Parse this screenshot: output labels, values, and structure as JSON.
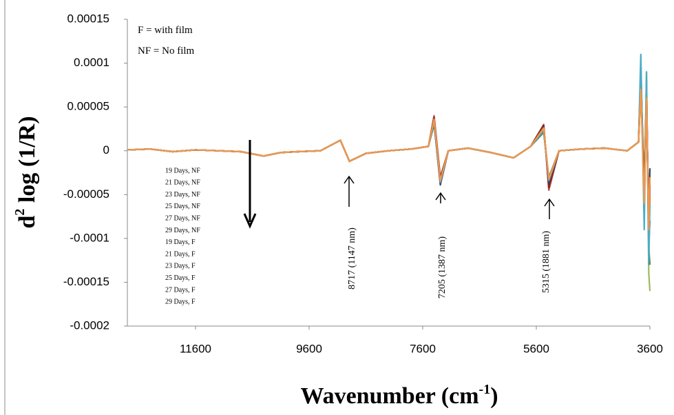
{
  "chart_data": {
    "type": "line",
    "y_label": {
      "base": "d",
      "sup": "2",
      "rest": " log (1/R)"
    },
    "x_label": {
      "base": "Wavenumber (cm",
      "sup": "-1",
      "rest": ")"
    },
    "notes": [
      "F = with film",
      "NF = No film"
    ],
    "annotations": [
      "8717 (1147 nm)",
      "7205 (1387 nm)",
      "5315 (1881 nm)"
    ],
    "xlim": [
      12800,
      3600
    ],
    "xticks": [
      11600,
      9600,
      7600,
      5600,
      3600
    ],
    "ylim": [
      -0.0002,
      0.00015
    ],
    "yticks": [
      0.00015,
      0.0001,
      5e-05,
      0,
      -5e-05,
      -0.0001,
      -0.00015,
      -0.0002
    ],
    "x": [
      12800,
      12400,
      12000,
      11600,
      11200,
      10800,
      10400,
      10100,
      9800,
      9400,
      9050,
      8890,
      8600,
      8200,
      7800,
      7500,
      7400,
      7290,
      7150,
      6800,
      6400,
      6000,
      5700,
      5470,
      5380,
      5200,
      4800,
      4400,
      4000,
      3800,
      3760,
      3700,
      3660,
      3620,
      3600
    ],
    "series": [
      {
        "name": "19 Days, NF",
        "color": "#4f81bd",
        "values": [
          1e-06,
          2e-06,
          -1e-06,
          1e-06,
          0,
          -1e-06,
          -6e-06,
          -2e-06,
          -1e-06,
          0,
          1.2e-05,
          -1.2e-05,
          -3e-06,
          0,
          2e-06,
          5e-06,
          3.2e-05,
          -3.8e-05,
          0,
          3e-06,
          -2e-06,
          -8e-06,
          5e-06,
          2.2e-05,
          -3.2e-05,
          0,
          2e-06,
          3e-06,
          0,
          1e-05,
          9e-05,
          -6e-05,
          7e-05,
          -0.0001,
          -4e-05
        ]
      },
      {
        "name": "21 Days, NF",
        "color": "#c0504d",
        "values": [
          1e-06,
          2e-06,
          -1e-06,
          1e-06,
          0,
          -1e-06,
          -6e-06,
          -2e-06,
          -1e-06,
          0,
          1.2e-05,
          -1.2e-05,
          -3e-06,
          0,
          2e-06,
          5e-06,
          4e-05,
          -3e-05,
          0,
          3e-06,
          -2e-06,
          -8e-06,
          5e-06,
          3e-05,
          -4.5e-05,
          0,
          2e-06,
          3e-06,
          0,
          1e-05,
          8e-05,
          -4e-05,
          6e-05,
          -9e-05,
          -2e-05
        ]
      },
      {
        "name": "23 Days, NF",
        "color": "#9bbb59",
        "values": [
          1e-06,
          2e-06,
          -1e-06,
          1e-06,
          0,
          -1e-06,
          -6e-06,
          -2e-06,
          -1e-06,
          0,
          1.2e-05,
          -1.2e-05,
          -3e-06,
          0,
          2e-06,
          5e-06,
          3e-05,
          -3.3e-05,
          0,
          3e-06,
          -2e-06,
          -8e-06,
          5e-06,
          2.4e-05,
          -3.4e-05,
          0,
          2e-06,
          3e-06,
          0,
          1e-05,
          7e-05,
          -5e-05,
          9e-05,
          -0.00014,
          -0.00016
        ]
      },
      {
        "name": "25 Days, NF",
        "color": "#8064a2",
        "values": [
          1e-06,
          2e-06,
          -1e-06,
          1e-06,
          0,
          -1e-06,
          -6e-06,
          -2e-06,
          -1e-06,
          0,
          1.2e-05,
          -1.2e-05,
          -3e-06,
          0,
          2e-06,
          5e-06,
          3.6e-05,
          -3.6e-05,
          0,
          3e-06,
          -2e-06,
          -8e-06,
          5e-06,
          2.6e-05,
          -3.6e-05,
          0,
          2e-06,
          3e-06,
          0,
          1e-05,
          0.0001,
          -7e-05,
          8e-05,
          -0.00011,
          -8e-05
        ]
      },
      {
        "name": "27 Days, NF",
        "color": "#4bacc6",
        "values": [
          1e-06,
          2e-06,
          -1e-06,
          1e-06,
          0,
          -1e-06,
          -6e-06,
          -2e-06,
          -1e-06,
          0,
          1.2e-05,
          -1.2e-05,
          -3e-06,
          0,
          2e-06,
          5e-06,
          3.3e-05,
          -3.4e-05,
          0,
          3e-06,
          -2e-06,
          -8e-06,
          5e-06,
          2.3e-05,
          -3e-05,
          0,
          2e-06,
          3e-06,
          0,
          1e-05,
          9e-05,
          -4e-05,
          7e-05,
          -0.0001,
          -3e-05
        ]
      },
      {
        "name": "29 Days, NF",
        "color": "#f79646",
        "values": [
          1e-06,
          2e-06,
          -1e-06,
          1e-06,
          0,
          -1e-06,
          -6e-06,
          -2e-06,
          -1e-06,
          0,
          1.2e-05,
          -1.2e-05,
          -3e-06,
          0,
          2e-06,
          5e-06,
          3.5e-05,
          -3.2e-05,
          0,
          3e-06,
          -2e-06,
          -8e-06,
          5e-06,
          2.5e-05,
          -3.3e-05,
          0,
          2e-06,
          3e-06,
          0,
          1e-05,
          8e-05,
          -6e-05,
          8e-05,
          -0.00012,
          -5e-05
        ]
      },
      {
        "name": "19 Days, F",
        "color": "#2c4d75",
        "values": [
          1e-06,
          2e-06,
          -1e-06,
          1e-06,
          0,
          -1e-06,
          -6e-06,
          -2e-06,
          -1e-06,
          0,
          1.2e-05,
          -1.2e-05,
          -3e-06,
          0,
          2e-06,
          5e-06,
          3.1e-05,
          -3.7e-05,
          0,
          3e-06,
          -2e-06,
          -8e-06,
          5e-06,
          2.7e-05,
          -3.8e-05,
          0,
          2e-06,
          3e-06,
          0,
          1e-05,
          9e-05,
          -5e-05,
          7e-05,
          -9e-05,
          -2e-05
        ]
      },
      {
        "name": "21 Days, F",
        "color": "#772c2a",
        "values": [
          1e-06,
          2e-06,
          -1e-06,
          1e-06,
          0,
          -1e-06,
          -6e-06,
          -2e-06,
          -1e-06,
          0,
          1.2e-05,
          -1.2e-05,
          -3e-06,
          0,
          2e-06,
          5e-06,
          3.8e-05,
          -3.1e-05,
          0,
          3e-06,
          -2e-06,
          -8e-06,
          5e-06,
          2.9e-05,
          -4.2e-05,
          0,
          2e-06,
          3e-06,
          0,
          1e-05,
          7e-05,
          -4e-05,
          6e-05,
          -8e-05,
          -3e-05
        ]
      },
      {
        "name": "23 Days, F",
        "color": "#5f7530",
        "values": [
          1e-06,
          2e-06,
          -1e-06,
          1e-06,
          0,
          -1e-06,
          -6e-06,
          -2e-06,
          -1e-06,
          0,
          1.2e-05,
          -1.2e-05,
          -3e-06,
          0,
          2e-06,
          5e-06,
          3.4e-05,
          -3.5e-05,
          0,
          3e-06,
          -2e-06,
          -8e-06,
          5e-06,
          2.1e-05,
          -3.1e-05,
          0,
          2e-06,
          3e-06,
          0,
          1e-05,
          8e-05,
          -5e-05,
          7e-05,
          -0.00011,
          -0.00013
        ]
      },
      {
        "name": "25 Days, F",
        "color": "#4d3b62",
        "values": [
          1e-06,
          2e-06,
          -1e-06,
          1e-06,
          0,
          -1e-06,
          -6e-06,
          -2e-06,
          -1e-06,
          0,
          1.2e-05,
          -1.2e-05,
          -3e-06,
          0,
          2e-06,
          5e-06,
          3.2e-05,
          -3.9e-05,
          0,
          3e-06,
          -2e-06,
          -8e-06,
          5e-06,
          2.4e-05,
          -3.5e-05,
          0,
          2e-06,
          3e-06,
          0,
          1e-05,
          9e-05,
          -6e-05,
          6e-05,
          -0.0001,
          -4e-05
        ]
      },
      {
        "name": "27 Days, F",
        "color": "#4bacc6",
        "values": [
          1e-06,
          2e-06,
          -1e-06,
          1e-06,
          0,
          -1e-06,
          -6e-06,
          -2e-06,
          -1e-06,
          0,
          1.2e-05,
          -1.2e-05,
          -3e-06,
          0,
          2e-06,
          5e-06,
          3.3e-05,
          -3.6e-05,
          0,
          3e-06,
          -2e-06,
          -8e-06,
          5e-06,
          2.3e-05,
          -3.4e-05,
          0,
          2e-06,
          3e-06,
          0,
          1e-05,
          0.00011,
          -9e-05,
          9e-05,
          -0.00013,
          -6e-05
        ]
      },
      {
        "name": "29 Days, F",
        "color": "#f79646",
        "values": [
          1e-06,
          2e-06,
          -1e-06,
          1e-06,
          0,
          -1e-06,
          -6e-06,
          -2e-06,
          -1e-06,
          0,
          1.2e-05,
          -1.2e-05,
          -3e-06,
          0,
          2e-06,
          5e-06,
          3.6e-05,
          -3.4e-05,
          0,
          3e-06,
          -2e-06,
          -8e-06,
          5e-06,
          2.6e-05,
          -3.2e-05,
          0,
          2e-06,
          3e-06,
          0,
          1e-05,
          7e-05,
          -6e-05,
          6e-05,
          -9e-05,
          -3e-05
        ]
      }
    ]
  }
}
